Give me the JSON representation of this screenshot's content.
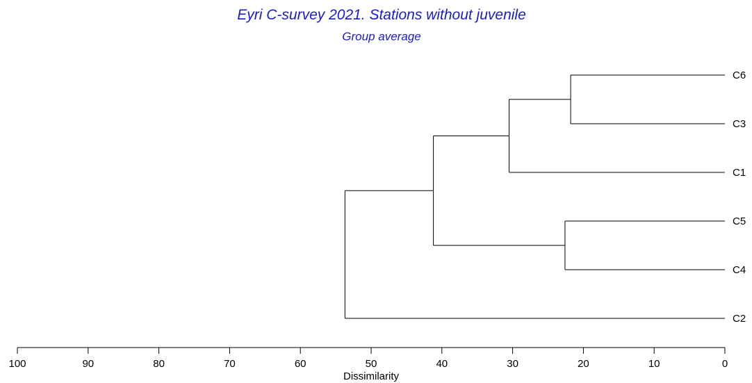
{
  "chart_data": {
    "type": "dendrogram",
    "title": "Eyri C-survey 2021. Stations without juvenile",
    "subtitle": "Group average",
    "xlabel": "Dissimilarity",
    "title_color": "#1a1ad6",
    "xlim": [
      100,
      0
    ],
    "x_ticks": [
      "100",
      "90",
      "80",
      "70",
      "60",
      "50",
      "40",
      "30",
      "20",
      "10",
      "0"
    ],
    "leaves": [
      "C6",
      "C3",
      "C1",
      "C5",
      "C4",
      "C2"
    ],
    "merges": [
      {
        "left": "C6",
        "right": "C3",
        "height": 21.8
      },
      {
        "left": "C5",
        "right": "C4",
        "height": 22.6
      },
      {
        "left": "C6+C3",
        "right": "C1",
        "height": 30.5
      },
      {
        "left": "C6+C3+C1",
        "right": "C5+C4",
        "height": 41.2
      },
      {
        "left": "C6+C3+C1+C5+C4",
        "right": "C2",
        "height": 53.7
      }
    ]
  }
}
